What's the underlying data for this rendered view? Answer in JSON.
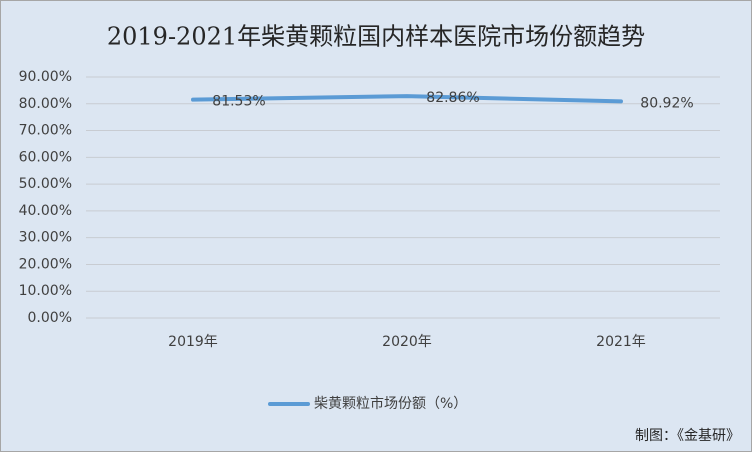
{
  "chart_data": {
    "type": "line",
    "title": "2019-2021年柴黄颗粒国内样本医院市场份额趋势",
    "categories": [
      "2019年",
      "2020年",
      "2021年"
    ],
    "series": [
      {
        "name": "柴黄颗粒市场份额（%）",
        "color": "#5b9bd5",
        "values": [
          81.53,
          82.86,
          80.92
        ],
        "value_labels": [
          "81.53%",
          "82.86%",
          "80.92%"
        ]
      }
    ],
    "ylim": [
      0,
      90
    ],
    "yticks": [
      {
        "value": 0,
        "label": "0.00%"
      },
      {
        "value": 10,
        "label": "10.00%"
      },
      {
        "value": 20,
        "label": "20.00%"
      },
      {
        "value": 30,
        "label": "30.00%"
      },
      {
        "value": 40,
        "label": "40.00%"
      },
      {
        "value": 50,
        "label": "50.00%"
      },
      {
        "value": 60,
        "label": "60.00%"
      },
      {
        "value": 70,
        "label": "70.00%"
      },
      {
        "value": 80,
        "label": "80.00%"
      },
      {
        "value": 90,
        "label": "90.00%"
      }
    ],
    "grid": true,
    "legend": "bottom",
    "source": "制图：《金基研》"
  }
}
